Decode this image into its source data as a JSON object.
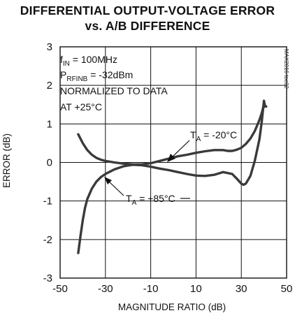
{
  "chart_data": {
    "type": "line",
    "title_line1": "DIFFERENTIAL OUTPUT-VOLTAGE ERROR",
    "title_line2": "vs. A/B DIFFERENCE",
    "xlabel": "MAGNITUDE RATIO (dB)",
    "ylabel": "ERROR (dB)",
    "xlim": [
      -50,
      50
    ],
    "ylim": [
      -3,
      3
    ],
    "xticks": [
      -50,
      -30,
      -10,
      10,
      30,
      50
    ],
    "yticks": [
      3,
      2,
      1,
      0,
      -1,
      -2,
      -3
    ],
    "grid": true,
    "conditions": {
      "fin_main": "f",
      "fin_sub": "IN",
      "fin_val": " = 100MHz",
      "prf_main": "P",
      "prf_sub": "RFINB",
      "prf_val": " = -32dBm",
      "line3": "NORMALIZED TO DATA",
      "line4": "AT +25°C"
    },
    "annotations": [
      {
        "main": "T",
        "sub": "A",
        "val": " = -20°C"
      },
      {
        "main": "T",
        "sub": "A",
        "val": " = +85°C"
      }
    ],
    "watermark": "MAX2016 toc02",
    "series": [
      {
        "label_index": 0,
        "points": [
          [
            -42,
            0.73
          ],
          [
            -40,
            0.5
          ],
          [
            -38,
            0.32
          ],
          [
            -36,
            0.2
          ],
          [
            -34,
            0.12
          ],
          [
            -32,
            0.07
          ],
          [
            -30,
            0.04
          ],
          [
            -26,
            0.0
          ],
          [
            -22,
            -0.03
          ],
          [
            -18,
            -0.05
          ],
          [
            -14,
            -0.05
          ],
          [
            -10,
            -0.02
          ],
          [
            -6,
            0.04
          ],
          [
            -2,
            0.1
          ],
          [
            2,
            0.16
          ],
          [
            6,
            0.2
          ],
          [
            10,
            0.25
          ],
          [
            14,
            0.29
          ],
          [
            18,
            0.32
          ],
          [
            22,
            0.32
          ],
          [
            24,
            0.3
          ],
          [
            26,
            0.3
          ],
          [
            28,
            0.33
          ],
          [
            30,
            0.38
          ],
          [
            32,
            0.48
          ],
          [
            34,
            0.62
          ],
          [
            36,
            0.82
          ],
          [
            38,
            1.1
          ],
          [
            39,
            1.28
          ],
          [
            40,
            1.5
          ],
          [
            41,
            1.45
          ]
        ]
      },
      {
        "label_index": 1,
        "points": [
          [
            -42,
            -2.35
          ],
          [
            -41,
            -1.9
          ],
          [
            -40,
            -1.5
          ],
          [
            -39,
            -1.18
          ],
          [
            -38,
            -0.95
          ],
          [
            -36,
            -0.68
          ],
          [
            -34,
            -0.5
          ],
          [
            -32,
            -0.38
          ],
          [
            -30,
            -0.3
          ],
          [
            -28,
            -0.24
          ],
          [
            -26,
            -0.18
          ],
          [
            -22,
            -0.1
          ],
          [
            -18,
            -0.06
          ],
          [
            -14,
            -0.07
          ],
          [
            -10,
            -0.11
          ],
          [
            -6,
            -0.16
          ],
          [
            -2,
            -0.2
          ],
          [
            2,
            -0.25
          ],
          [
            6,
            -0.3
          ],
          [
            10,
            -0.34
          ],
          [
            14,
            -0.35
          ],
          [
            18,
            -0.32
          ],
          [
            22,
            -0.25
          ],
          [
            26,
            -0.3
          ],
          [
            28,
            -0.42
          ],
          [
            30,
            -0.55
          ],
          [
            31,
            -0.58
          ],
          [
            32,
            -0.55
          ],
          [
            34,
            -0.35
          ],
          [
            36,
            0.05
          ],
          [
            38,
            0.6
          ],
          [
            39,
            1.05
          ],
          [
            40,
            1.6
          ],
          [
            40.5,
            1.45
          ]
        ]
      }
    ]
  }
}
